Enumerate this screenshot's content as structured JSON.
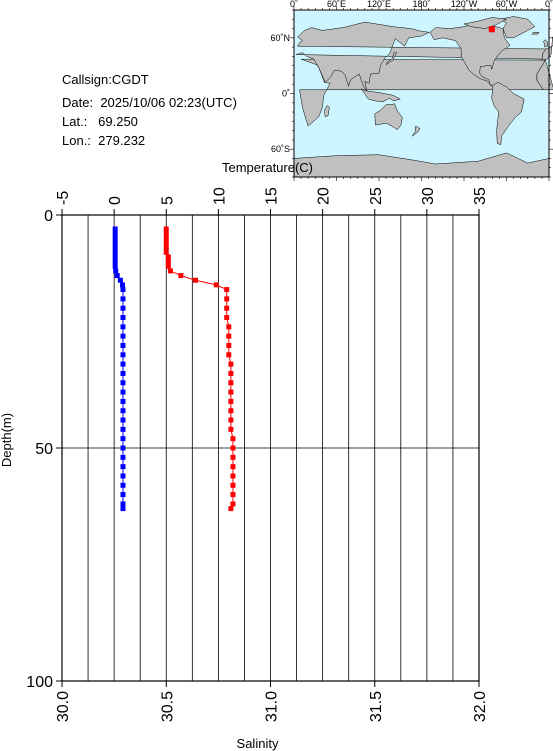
{
  "header": {
    "callsign_label": "Callsign:",
    "callsign": "CGDT",
    "date_label": "Date:",
    "date": "2025/10/06 02:23(UTC)",
    "lat_label": "Lat.:",
    "lat": "69.250",
    "lon_label": "Lon.:",
    "lon": "279.232"
  },
  "map": {
    "lon_ticks": [
      "0˚",
      "60˚E",
      "120˚E",
      "180˚",
      "120˚W",
      "60˚W",
      "0˚"
    ],
    "lat_ticks": [
      "60˚N",
      "0˚",
      "60˚S"
    ],
    "ocean_color": "#ccf5ff",
    "land_color": "#c0c0c0",
    "marker_color": "#ff0000",
    "station": {
      "lon": 279.232,
      "lat": 69.25
    }
  },
  "chart_data": {
    "type": "line",
    "xlabel_top": "Temperature(C)",
    "xlabel_bottom": "Salinity",
    "ylabel": "Depth(m)",
    "temperature_range": [
      -5,
      35
    ],
    "temperature_ticks": [
      -5,
      0,
      5,
      10,
      15,
      20,
      25,
      30,
      35
    ],
    "salinity_range": [
      30.0,
      32.0
    ],
    "salinity_ticks": [
      "30.0",
      "30.5",
      "31.0",
      "31.5",
      "32.0"
    ],
    "depth_range": [
      0,
      100
    ],
    "depth_ticks": [
      0,
      50,
      100
    ],
    "series": [
      {
        "axis": "salinity",
        "color": "#ff0000",
        "depth": [
          3,
          4,
          5,
          6,
          7,
          8,
          9,
          10,
          11,
          12,
          13,
          14,
          15,
          16,
          18,
          20,
          22,
          24,
          26,
          28,
          30,
          32,
          34,
          36,
          38,
          40,
          42,
          44,
          46,
          48,
          50,
          52,
          54,
          56,
          58,
          60,
          62,
          63
        ],
        "salinity": [
          30.5,
          30.5,
          30.5,
          30.5,
          30.5,
          30.5,
          30.51,
          30.51,
          30.51,
          30.52,
          30.57,
          30.64,
          30.74,
          30.79,
          30.79,
          30.79,
          30.79,
          30.8,
          30.8,
          30.8,
          30.8,
          30.81,
          30.81,
          30.81,
          30.81,
          30.81,
          30.81,
          30.81,
          30.81,
          30.82,
          30.82,
          30.82,
          30.82,
          30.82,
          30.82,
          30.82,
          30.82,
          30.81
        ]
      },
      {
        "axis": "temperature",
        "color": "#0000ff",
        "depth": [
          3,
          4,
          5,
          6,
          7,
          8,
          9,
          10,
          11,
          12,
          13,
          14,
          15,
          16,
          18,
          20,
          22,
          24,
          26,
          28,
          30,
          32,
          34,
          36,
          38,
          40,
          42,
          44,
          46,
          48,
          50,
          52,
          54,
          56,
          58,
          60,
          62,
          63
        ],
        "temperature": [
          0.1,
          0.1,
          0.1,
          0.1,
          0.1,
          0.1,
          0.1,
          0.1,
          0.1,
          0.15,
          0.3,
          0.6,
          0.8,
          0.85,
          0.85,
          0.85,
          0.85,
          0.85,
          0.85,
          0.85,
          0.85,
          0.85,
          0.85,
          0.85,
          0.85,
          0.85,
          0.85,
          0.85,
          0.85,
          0.85,
          0.85,
          0.85,
          0.85,
          0.85,
          0.85,
          0.85,
          0.85,
          0.85
        ]
      }
    ]
  }
}
